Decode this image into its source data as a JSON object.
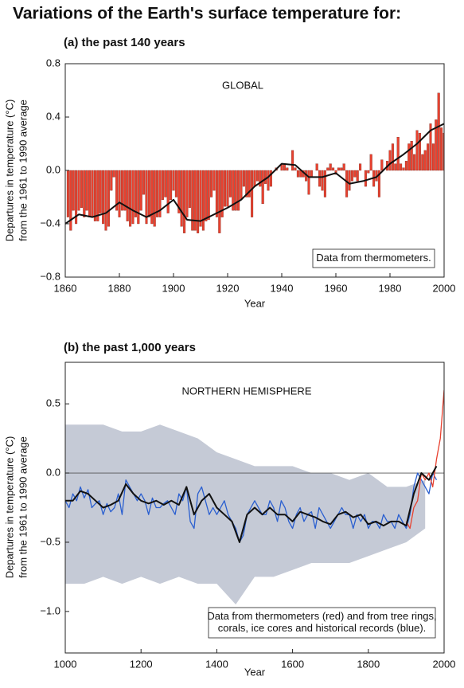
{
  "title": "Variations of the Earth's surface temperature for:",
  "chart_data": [
    {
      "type": "bar",
      "subtitle": "(a) the past 140 years",
      "annotation": "GLOBAL",
      "note": [
        "Data from thermometers."
      ],
      "ylabel": [
        "Departures in temperature (°C)",
        "from the 1961 to 1990 average"
      ],
      "xlabel": "Year",
      "xlim": [
        1860,
        2000
      ],
      "xticks": [
        1860,
        1880,
        1900,
        1920,
        1940,
        1960,
        1980,
        2000
      ],
      "ylim": [
        -0.8,
        0.8
      ],
      "yticks": [
        {
          "value": -0.8,
          "label": "−0.8"
        },
        {
          "value": -0.4,
          "label": "−0.4"
        },
        {
          "value": 0,
          "label": "0.0"
        },
        0.4,
        0.8
      ],
      "series": [
        {
          "style": "bars",
          "color": "#e8412f",
          "x": [
            1861,
            1862,
            1863,
            1864,
            1865,
            1866,
            1867,
            1868,
            1869,
            1870,
            1871,
            1872,
            1873,
            1874,
            1875,
            1876,
            1877,
            1878,
            1879,
            1880,
            1881,
            1882,
            1883,
            1884,
            1885,
            1886,
            1887,
            1888,
            1889,
            1890,
            1891,
            1892,
            1893,
            1894,
            1895,
            1896,
            1897,
            1898,
            1899,
            1900,
            1901,
            1902,
            1903,
            1904,
            1905,
            1906,
            1907,
            1908,
            1909,
            1910,
            1911,
            1912,
            1913,
            1914,
            1915,
            1916,
            1917,
            1918,
            1919,
            1920,
            1921,
            1922,
            1923,
            1924,
            1925,
            1926,
            1927,
            1928,
            1929,
            1930,
            1931,
            1932,
            1933,
            1934,
            1935,
            1936,
            1937,
            1938,
            1939,
            1940,
            1941,
            1942,
            1943,
            1944,
            1945,
            1946,
            1947,
            1948,
            1949,
            1950,
            1951,
            1952,
            1953,
            1954,
            1955,
            1956,
            1957,
            1958,
            1959,
            1960,
            1961,
            1962,
            1963,
            1964,
            1965,
            1966,
            1967,
            1968,
            1969,
            1970,
            1971,
            1972,
            1973,
            1974,
            1975,
            1976,
            1977,
            1978,
            1979,
            1980,
            1981,
            1982,
            1983,
            1984,
            1985,
            1986,
            1987,
            1988,
            1989,
            1990,
            1991,
            1992,
            1993,
            1994,
            1995,
            1996,
            1997,
            1998,
            1999,
            2000
          ],
          "values": [
            -0.35,
            -0.45,
            -0.3,
            -0.4,
            -0.3,
            -0.28,
            -0.35,
            -0.3,
            -0.35,
            -0.35,
            -0.38,
            -0.38,
            -0.32,
            -0.4,
            -0.45,
            -0.42,
            -0.15,
            -0.05,
            -0.3,
            -0.35,
            -0.3,
            -0.3,
            -0.38,
            -0.42,
            -0.4,
            -0.35,
            -0.4,
            -0.3,
            -0.18,
            -0.4,
            -0.35,
            -0.4,
            -0.42,
            -0.35,
            -0.35,
            -0.22,
            -0.2,
            -0.32,
            -0.22,
            -0.15,
            -0.2,
            -0.32,
            -0.42,
            -0.47,
            -0.35,
            -0.28,
            -0.45,
            -0.45,
            -0.47,
            -0.42,
            -0.45,
            -0.38,
            -0.37,
            -0.2,
            -0.15,
            -0.35,
            -0.47,
            -0.35,
            -0.27,
            -0.27,
            -0.2,
            -0.3,
            -0.3,
            -0.3,
            -0.22,
            -0.12,
            -0.2,
            -0.2,
            -0.35,
            -0.12,
            -0.08,
            -0.12,
            -0.25,
            -0.1,
            -0.15,
            -0.12,
            0.0,
            0.02,
            0.0,
            0.05,
            0.05,
            0.02,
            0.0,
            0.15,
            0.02,
            -0.05,
            -0.05,
            -0.05,
            -0.08,
            -0.18,
            -0.05,
            0.0,
            0.05,
            -0.12,
            -0.15,
            -0.2,
            0.02,
            0.05,
            0.02,
            -0.03,
            0.02,
            0.02,
            0.05,
            -0.2,
            -0.15,
            -0.08,
            -0.05,
            -0.08,
            0.05,
            0.0,
            -0.12,
            -0.02,
            0.12,
            -0.12,
            -0.08,
            -0.2,
            0.08,
            0.0,
            0.07,
            0.15,
            0.2,
            0.05,
            0.25,
            0.05,
            0.02,
            0.07,
            0.2,
            0.22,
            0.12,
            0.3,
            0.28,
            0.12,
            0.15,
            0.2,
            0.35,
            0.2,
            0.38,
            0.58,
            0.32,
            0.28
          ]
        },
        {
          "style": "line",
          "color": "#111111",
          "x": [
            1860,
            1865,
            1870,
            1875,
            1880,
            1885,
            1890,
            1895,
            1900,
            1905,
            1910,
            1915,
            1920,
            1925,
            1930,
            1935,
            1940,
            1945,
            1950,
            1955,
            1960,
            1965,
            1970,
            1975,
            1980,
            1985,
            1990,
            1995,
            2000
          ],
          "values": [
            -0.4,
            -0.33,
            -0.35,
            -0.32,
            -0.24,
            -0.3,
            -0.35,
            -0.3,
            -0.22,
            -0.37,
            -0.38,
            -0.33,
            -0.28,
            -0.22,
            -0.12,
            -0.05,
            0.05,
            0.04,
            -0.05,
            -0.05,
            -0.02,
            -0.1,
            -0.08,
            -0.05,
            0.05,
            0.12,
            0.2,
            0.3,
            0.35
          ]
        }
      ]
    },
    {
      "type": "line",
      "subtitle": "(b) the past 1,000 years",
      "annotation": "NORTHERN HEMISPHERE",
      "note": [
        "Data from thermometers (red) and from tree rings,",
        "corals, ice cores and historical records (blue)."
      ],
      "ylabel": [
        "Departures in temperature (°C)",
        "from the 1961 to 1990 average"
      ],
      "xlabel": "Year",
      "xlim": [
        1000,
        2000
      ],
      "xticks": [
        1000,
        1200,
        1400,
        1600,
        1800,
        2000
      ],
      "ylim": [
        -1.3,
        0.8
      ],
      "yticks": [
        {
          "value": -1,
          "label": "−1.0"
        },
        {
          "value": -0.5,
          "label": "−0.5"
        },
        {
          "value": 0,
          "label": "0.0"
        },
        0.5
      ],
      "zero_line": true,
      "series": [
        {
          "style": "band",
          "color": "#c5cad6",
          "x": [
            1000,
            1050,
            1100,
            1150,
            1200,
            1250,
            1300,
            1350,
            1400,
            1450,
            1500,
            1550,
            1600,
            1650,
            1700,
            1750,
            1800,
            1850,
            1900,
            1950
          ],
          "lower": [
            -0.8,
            -0.8,
            -0.75,
            -0.8,
            -0.75,
            -0.8,
            -0.75,
            -0.8,
            -0.8,
            -0.95,
            -0.75,
            -0.75,
            -0.7,
            -0.65,
            -0.65,
            -0.65,
            -0.6,
            -0.55,
            -0.5,
            -0.4
          ],
          "upper": [
            0.35,
            0.35,
            0.35,
            0.3,
            0.3,
            0.35,
            0.3,
            0.25,
            0.15,
            0.1,
            0.05,
            0.05,
            0.05,
            0.0,
            0.0,
            -0.05,
            0.0,
            -0.1,
            -0.1,
            -0.05
          ]
        },
        {
          "style": "line",
          "color": "#2a5fd0",
          "x": [
            1000,
            1010,
            1020,
            1030,
            1040,
            1050,
            1060,
            1070,
            1080,
            1090,
            1100,
            1110,
            1120,
            1130,
            1140,
            1150,
            1160,
            1170,
            1180,
            1190,
            1200,
            1210,
            1220,
            1230,
            1240,
            1250,
            1260,
            1270,
            1280,
            1290,
            1300,
            1310,
            1320,
            1330,
            1340,
            1350,
            1360,
            1370,
            1380,
            1390,
            1400,
            1410,
            1420,
            1430,
            1440,
            1450,
            1460,
            1470,
            1480,
            1490,
            1500,
            1510,
            1520,
            1530,
            1540,
            1550,
            1560,
            1570,
            1580,
            1590,
            1600,
            1610,
            1620,
            1630,
            1640,
            1650,
            1660,
            1670,
            1680,
            1690,
            1700,
            1710,
            1720,
            1730,
            1740,
            1750,
            1760,
            1770,
            1780,
            1790,
            1800,
            1810,
            1820,
            1830,
            1840,
            1850,
            1860,
            1870,
            1880,
            1890,
            1900,
            1910,
            1920,
            1930,
            1940,
            1950,
            1960,
            1970,
            1980
          ],
          "values": [
            -0.2,
            -0.25,
            -0.15,
            -0.2,
            -0.1,
            -0.18,
            -0.12,
            -0.25,
            -0.22,
            -0.2,
            -0.3,
            -0.22,
            -0.28,
            -0.25,
            -0.15,
            -0.3,
            -0.05,
            -0.1,
            -0.15,
            -0.2,
            -0.15,
            -0.2,
            -0.3,
            -0.18,
            -0.25,
            -0.25,
            -0.22,
            -0.2,
            -0.25,
            -0.3,
            -0.15,
            -0.2,
            -0.1,
            -0.35,
            -0.4,
            -0.15,
            -0.1,
            -0.2,
            -0.3,
            -0.25,
            -0.3,
            -0.25,
            -0.2,
            -0.3,
            -0.35,
            -0.4,
            -0.5,
            -0.45,
            -0.3,
            -0.25,
            -0.2,
            -0.25,
            -0.3,
            -0.3,
            -0.2,
            -0.25,
            -0.35,
            -0.2,
            -0.25,
            -0.35,
            -0.4,
            -0.3,
            -0.25,
            -0.35,
            -0.3,
            -0.28,
            -0.4,
            -0.25,
            -0.3,
            -0.35,
            -0.4,
            -0.35,
            -0.3,
            -0.25,
            -0.3,
            -0.3,
            -0.4,
            -0.3,
            -0.35,
            -0.3,
            -0.4,
            -0.35,
            -0.35,
            -0.4,
            -0.3,
            -0.35,
            -0.35,
            -0.4,
            -0.3,
            -0.35,
            -0.4,
            -0.3,
            -0.1,
            0.0,
            -0.05,
            -0.1,
            -0.15,
            0.0,
            -0.05
          ]
        },
        {
          "style": "line",
          "color": "#e8412f",
          "x": [
            1900,
            1910,
            1920,
            1930,
            1940,
            1950,
            1960,
            1970,
            1980,
            1990,
            2000
          ],
          "values": [
            -0.35,
            -0.4,
            -0.25,
            -0.2,
            0.0,
            -0.05,
            0.0,
            -0.1,
            0.1,
            0.25,
            0.6
          ]
        },
        {
          "style": "line",
          "color": "#111111",
          "x": [
            1000,
            1020,
            1040,
            1060,
            1080,
            1100,
            1120,
            1140,
            1160,
            1180,
            1200,
            1220,
            1240,
            1260,
            1280,
            1300,
            1320,
            1340,
            1360,
            1380,
            1400,
            1420,
            1440,
            1460,
            1480,
            1500,
            1520,
            1540,
            1560,
            1580,
            1600,
            1620,
            1640,
            1660,
            1680,
            1700,
            1720,
            1740,
            1760,
            1780,
            1800,
            1820,
            1840,
            1860,
            1880,
            1900,
            1920,
            1940,
            1960,
            1980
          ],
          "values": [
            -0.2,
            -0.2,
            -0.13,
            -0.15,
            -0.2,
            -0.25,
            -0.23,
            -0.2,
            -0.08,
            -0.15,
            -0.2,
            -0.22,
            -0.2,
            -0.23,
            -0.2,
            -0.23,
            -0.1,
            -0.3,
            -0.2,
            -0.15,
            -0.25,
            -0.3,
            -0.35,
            -0.5,
            -0.3,
            -0.25,
            -0.3,
            -0.25,
            -0.3,
            -0.3,
            -0.35,
            -0.28,
            -0.3,
            -0.32,
            -0.35,
            -0.37,
            -0.3,
            -0.28,
            -0.32,
            -0.3,
            -0.37,
            -0.35,
            -0.38,
            -0.35,
            -0.35,
            -0.38,
            -0.15,
            0.0,
            -0.05,
            0.05
          ]
        }
      ]
    }
  ]
}
